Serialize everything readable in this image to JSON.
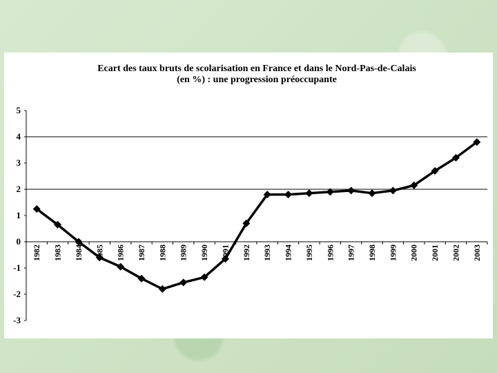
{
  "chart_data": {
    "type": "line",
    "title_line1": "Ecart des taux bruts de scolarisation en France et dans le Nord-Pas-de-Calais",
    "title_line2": "(en %) : une progression préoccupante",
    "xlabel": "",
    "ylabel": "",
    "ylim": [
      -3,
      5
    ],
    "yticks": [
      "5",
      "4",
      "3",
      "2",
      "1",
      "0",
      "-1",
      "-2",
      "-3"
    ],
    "grid_lines": [
      4,
      2
    ],
    "categories": [
      "1982",
      "1983",
      "1984",
      "1985",
      "1986",
      "1987",
      "1988",
      "1989",
      "1990",
      "1991",
      "1992",
      "1993",
      "1994",
      "1995",
      "1996",
      "1997",
      "1998",
      "1999",
      "2000",
      "2001",
      "2002",
      "2003"
    ],
    "values": [
      1.25,
      0.65,
      0.0,
      -0.6,
      -0.95,
      -1.4,
      -1.8,
      -1.55,
      -1.35,
      -0.65,
      0.7,
      1.8,
      1.8,
      1.85,
      1.9,
      1.95,
      1.85,
      1.95,
      2.15,
      2.7,
      3.2,
      3.8
    ],
    "line_color": "#000000",
    "marker": "diamond",
    "grid": true,
    "legend": "none"
  }
}
